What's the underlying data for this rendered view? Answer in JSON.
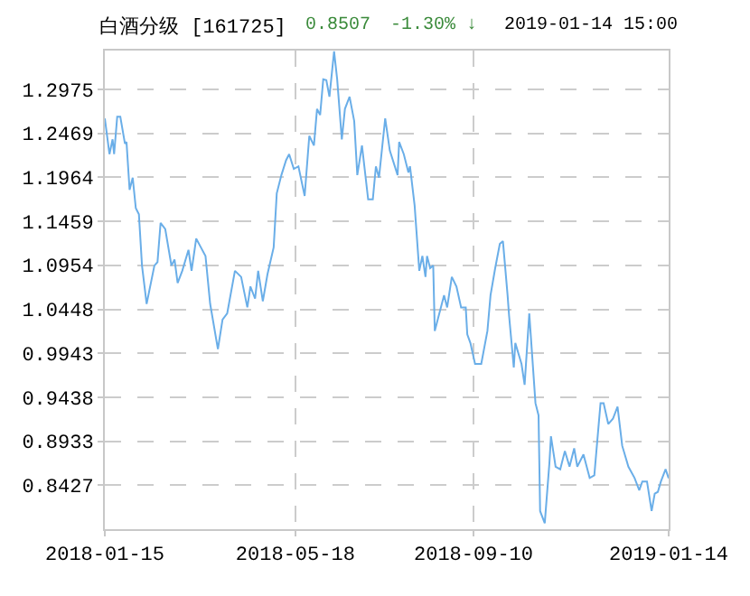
{
  "chart_data": {
    "type": "line",
    "title": "白酒分级 [161725]",
    "annotations": [
      "0.8507",
      "-1.30% ↓",
      "2019-01-14 15:00"
    ],
    "x": [
      "2018-01-15",
      "2018-01-18",
      "2018-01-20",
      "2018-01-21",
      "2018-01-23",
      "2018-01-25",
      "2018-01-28",
      "2018-01-29",
      "2018-01-31",
      "2018-02-02",
      "2018-02-04",
      "2018-02-06",
      "2018-02-08",
      "2018-02-11",
      "2018-02-16",
      "2018-02-18",
      "2018-02-20",
      "2018-02-23",
      "2018-02-27",
      "2018-03-01",
      "2018-03-03",
      "2018-03-06",
      "2018-03-10",
      "2018-03-12",
      "2018-03-15",
      "2018-03-18",
      "2018-03-21",
      "2018-03-24",
      "2018-03-29",
      "2018-04-01",
      "2018-04-04",
      "2018-04-09",
      "2018-04-13",
      "2018-04-17",
      "2018-04-19",
      "2018-04-22",
      "2018-04-24",
      "2018-04-27",
      "2018-04-30",
      "2018-05-04",
      "2018-05-06",
      "2018-05-09",
      "2018-05-12",
      "2018-05-14",
      "2018-05-17",
      "2018-05-20",
      "2018-05-24",
      "2018-05-27",
      "2018-05-30",
      "2018-06-01",
      "2018-06-03",
      "2018-06-05",
      "2018-06-07",
      "2018-06-09",
      "2018-06-12",
      "2018-06-14",
      "2018-06-17",
      "2018-06-19",
      "2018-06-22",
      "2018-06-25",
      "2018-06-27",
      "2018-06-30",
      "2018-07-04",
      "2018-07-07",
      "2018-07-09",
      "2018-07-11",
      "2018-07-15",
      "2018-07-18",
      "2018-07-23",
      "2018-07-24",
      "2018-07-27",
      "2018-07-30",
      "2018-07-31",
      "2018-08-03",
      "2018-08-06",
      "2018-08-08",
      "2018-08-10",
      "2018-08-11",
      "2018-08-13",
      "2018-08-15",
      "2018-08-16",
      "2018-08-22",
      "2018-08-24",
      "2018-08-27",
      "2018-08-30",
      "2018-09-02",
      "2018-09-05",
      "2018-09-06",
      "2018-09-08",
      "2018-09-11",
      "2018-09-15",
      "2018-09-19",
      "2018-09-21",
      "2018-09-24",
      "2018-09-27",
      "2018-09-29",
      "2018-10-02",
      "2018-10-03",
      "2018-10-06",
      "2018-10-07",
      "2018-10-11",
      "2018-10-13",
      "2018-10-16",
      "2018-10-20",
      "2018-10-22",
      "2018-10-23",
      "2018-10-26",
      "2018-10-29",
      "2018-10-30",
      "2018-11-02",
      "2018-11-05",
      "2018-11-08",
      "2018-11-11",
      "2018-11-14",
      "2018-11-16",
      "2018-11-20",
      "2018-11-24",
      "2018-11-27",
      "2018-12-01",
      "2018-12-03",
      "2018-12-06",
      "2018-12-09",
      "2018-12-12",
      "2018-12-15",
      "2018-12-19",
      "2018-12-23",
      "2018-12-26",
      "2018-12-28",
      "2018-12-31",
      "2019-01-03",
      "2019-01-05",
      "2019-01-07",
      "2019-01-09",
      "2019-01-12",
      "2019-01-14"
    ],
    "series": [
      {
        "color": "#6aaee8",
        "values": [
          1.264,
          1.223,
          1.24,
          1.223,
          1.266,
          1.266,
          1.235,
          1.237,
          1.182,
          1.196,
          1.161,
          1.154,
          1.095,
          1.051,
          1.095,
          1.099,
          1.144,
          1.137,
          1.095,
          1.102,
          1.075,
          1.089,
          1.113,
          1.089,
          1.126,
          1.116,
          1.106,
          1.051,
          0.999,
          1.033,
          1.04,
          1.089,
          1.082,
          1.047,
          1.071,
          1.057,
          1.089,
          1.054,
          1.085,
          1.116,
          1.178,
          1.199,
          1.216,
          1.223,
          1.206,
          1.209,
          1.175,
          1.244,
          1.233,
          1.275,
          1.268,
          1.309,
          1.308,
          1.289,
          1.341,
          1.309,
          1.24,
          1.275,
          1.289,
          1.261,
          1.199,
          1.233,
          1.171,
          1.171,
          1.209,
          1.196,
          1.264,
          1.227,
          1.199,
          1.237,
          1.223,
          1.202,
          1.209,
          1.164,
          1.089,
          1.106,
          1.082,
          1.106,
          1.092,
          1.095,
          1.02,
          1.061,
          1.047,
          1.082,
          1.071,
          1.047,
          1.047,
          1.016,
          1.006,
          0.982,
          0.982,
          1.02,
          1.061,
          1.092,
          1.12,
          1.123,
          1.061,
          1.037,
          0.978,
          1.006,
          0.982,
          0.958,
          1.04,
          0.937,
          0.923,
          0.813,
          0.799,
          0.868,
          0.899,
          0.864,
          0.861,
          0.882,
          0.864,
          0.885,
          0.864,
          0.878,
          0.851,
          0.854,
          0.937,
          0.937,
          0.913,
          0.919,
          0.933,
          0.888,
          0.864,
          0.851,
          0.837,
          0.847,
          0.847,
          0.813,
          0.833,
          0.835,
          0.847,
          0.861,
          0.8507
        ]
      }
    ],
    "xlim": [
      "2018-01-15",
      "2019-01-14"
    ],
    "xticks": [
      "2018-01-15",
      "2018-05-18",
      "2018-09-10",
      "2019-01-14"
    ],
    "ylim": [
      0.7922,
      1.342
    ],
    "yticks": [
      0.8427,
      0.8933,
      0.9438,
      0.9943,
      1.0448,
      1.0954,
      1.1459,
      1.1964,
      1.2469,
      1.2975
    ],
    "grid": true,
    "marker": "none",
    "line_style": "solid"
  }
}
